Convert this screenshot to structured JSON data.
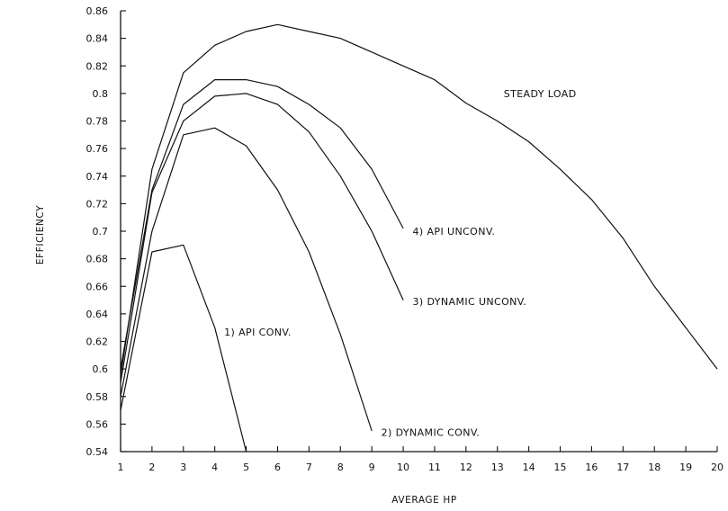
{
  "chart_data": {
    "type": "line",
    "title": "",
    "xlabel": "AVERAGE HP",
    "ylabel": "EFFICIENCY",
    "xlim": [
      1,
      20
    ],
    "ylim": [
      0.54,
      0.86
    ],
    "xticks": [
      1,
      2,
      3,
      4,
      5,
      6,
      7,
      8,
      9,
      10,
      11,
      12,
      13,
      14,
      15,
      16,
      17,
      18,
      19,
      20
    ],
    "yticks": [
      "0.54",
      "0.56",
      "0.58",
      "0.6",
      "0.62",
      "0.64",
      "0.66",
      "0.68",
      "0.7",
      "0.72",
      "0.74",
      "0.76",
      "0.78",
      "0.8",
      "0.82",
      "0.84",
      "0.86"
    ],
    "grid": false,
    "legend": "none",
    "series": [
      {
        "name": "STEADY LOAD",
        "label_at": [
          13.2,
          0.8
        ],
        "x": [
          1,
          2,
          3,
          4,
          5,
          6,
          7,
          8,
          9,
          10,
          11,
          12,
          13,
          14,
          15,
          16,
          17,
          18,
          19,
          20
        ],
        "y": [
          0.595,
          0.745,
          0.815,
          0.835,
          0.845,
          0.85,
          0.845,
          0.84,
          0.83,
          0.82,
          0.81,
          0.793,
          0.78,
          0.765,
          0.745,
          0.723,
          0.695,
          0.66,
          0.63,
          0.6
        ]
      },
      {
        "name": "4) API UNCONV.",
        "label_at": [
          10.3,
          0.7
        ],
        "x": [
          1,
          2,
          3,
          4,
          5,
          6,
          7,
          8,
          9,
          10
        ],
        "y": [
          0.6,
          0.73,
          0.792,
          0.81,
          0.81,
          0.805,
          0.792,
          0.775,
          0.745,
          0.702
        ]
      },
      {
        "name": "3) DYNAMIC UNCONV.",
        "label_at": [
          10.3,
          0.649
        ],
        "x": [
          1,
          2,
          3,
          4,
          5,
          6,
          7,
          8,
          9,
          10
        ],
        "y": [
          0.59,
          0.728,
          0.78,
          0.798,
          0.8,
          0.792,
          0.772,
          0.74,
          0.7,
          0.65
        ]
      },
      {
        "name": "2) DYNAMIC CONV.",
        "label_at": [
          9.3,
          0.554
        ],
        "x": [
          1,
          2,
          3,
          4,
          5,
          6,
          7,
          8,
          9
        ],
        "y": [
          0.58,
          0.7,
          0.77,
          0.775,
          0.762,
          0.73,
          0.685,
          0.625,
          0.555
        ]
      },
      {
        "name": "1) API CONV.",
        "label_at": [
          4.3,
          0.627
        ],
        "x": [
          1,
          2,
          3,
          4,
          5
        ],
        "y": [
          0.57,
          0.685,
          0.69,
          0.63,
          0.54
        ]
      }
    ]
  }
}
